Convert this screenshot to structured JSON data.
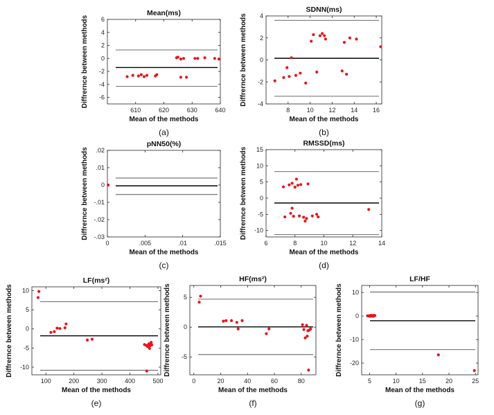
{
  "ylabel_text": "Diffrernce between methods",
  "xlabel_text": "Mean of the methods",
  "colors": {
    "points": "#e8151b",
    "mean_line": "#000000",
    "limit_line": "#555555",
    "axes": "#222222"
  },
  "chart_data": [
    {
      "type": "scatter",
      "title": "Mean(ms)",
      "panel_label": "(a)",
      "xlim": [
        600,
        640
      ],
      "ylim": [
        -7,
        6
      ],
      "xticks": [
        610,
        620,
        630,
        640
      ],
      "yticks": [
        -6,
        -4,
        -2,
        0,
        2,
        4,
        6
      ],
      "x": [
        607,
        609,
        611,
        612,
        613,
        614,
        617,
        617.5,
        624.5,
        625,
        626,
        627,
        628,
        631,
        632,
        634.5,
        638,
        639.5,
        626
      ],
      "y": [
        -2.8,
        -2.6,
        -2.7,
        -2.5,
        -2.8,
        -2.6,
        -2.7,
        -2.5,
        0.1,
        0.2,
        -0.1,
        0.0,
        -2.9,
        0.0,
        0.0,
        0.1,
        0.0,
        -0.1,
        -2.9
      ],
      "lines": {
        "mean": -1.4,
        "upper": 1.3,
        "lower": -4.3
      }
    },
    {
      "type": "scatter",
      "title": "SDNN(ms)",
      "panel_label": "(b)",
      "xlim": [
        6,
        16.5
      ],
      "ylim": [
        -4,
        4
      ],
      "xticks": [
        8,
        10,
        12,
        14,
        16
      ],
      "yticks": [
        -4,
        -2,
        0,
        2,
        4
      ],
      "x": [
        6.8,
        7.6,
        7.9,
        8.1,
        8.3,
        8.7,
        9.1,
        9.6,
        10.1,
        10.3,
        10.6,
        10.9,
        11.1,
        11.3,
        11.4,
        12.9,
        13.1,
        13.3,
        13.6,
        14.2,
        16.4
      ],
      "y": [
        -1.9,
        -1.6,
        -0.7,
        -1.5,
        0.2,
        -1.4,
        -1.2,
        -2.1,
        1.7,
        2.3,
        -1.1,
        2.2,
        2.4,
        2.2,
        1.9,
        -1.0,
        1.6,
        -1.3,
        2.0,
        1.9,
        1.2
      ],
      "lines": {
        "mean": 0.15,
        "upper": 3.6,
        "lower": -3.3
      }
    },
    {
      "type": "scatter",
      "title": "pNN50(%)",
      "panel_label": "(c)",
      "xlim": [
        0,
        0.015
      ],
      "ylim": [
        -0.03,
        0.02
      ],
      "xticks": [
        0,
        0.005,
        0.01,
        0.015
      ],
      "yticks": [
        -0.03,
        -0.02,
        -0.01,
        0,
        0.01,
        0.02
      ],
      "x": [
        0.0001
      ],
      "y": [
        0.0
      ],
      "lines": {
        "mean": -0.0005,
        "upper": 0.004,
        "lower": -0.0055
      }
    },
    {
      "type": "scatter",
      "title": "RMSSD(ms)",
      "panel_label": "(d)",
      "xlim": [
        6,
        14
      ],
      "ylim": [
        -12,
        15
      ],
      "xticks": [
        6,
        8,
        10,
        12,
        14
      ],
      "yticks": [
        -10,
        -5,
        0,
        5,
        10,
        15
      ],
      "x": [
        7.2,
        7.3,
        7.6,
        7.7,
        7.8,
        7.8,
        7.9,
        8.0,
        8.1,
        8.2,
        8.3,
        8.4,
        8.6,
        8.7,
        8.8,
        8.9,
        9.2,
        9.5,
        9.6,
        13.1
      ],
      "y": [
        3.5,
        -5.8,
        4.1,
        -4.7,
        -3.1,
        4.6,
        -5.6,
        3.4,
        5.9,
        4.0,
        -5.5,
        4.2,
        -5.9,
        -7.1,
        -6.3,
        4.4,
        -5.5,
        -5.0,
        -5.8,
        -3.5
      ],
      "lines": {
        "mean": -1.5,
        "upper": 8.2,
        "lower": -11.3
      }
    },
    {
      "type": "scatter",
      "title": "LF(ms²)",
      "panel_label": "(e)",
      "xlim": [
        50,
        510
      ],
      "ylim": [
        -12,
        11
      ],
      "xticks": [
        100,
        200,
        300,
        400,
        500
      ],
      "yticks": [
        -10,
        -5,
        0,
        5,
        10
      ],
      "x": [
        72,
        75,
        118,
        130,
        140,
        150,
        168,
        172,
        248,
        265,
        452,
        458,
        460,
        463,
        465,
        468,
        470,
        472,
        475,
        476,
        478
      ],
      "y": [
        8.2,
        9.8,
        -0.9,
        -0.7,
        0.2,
        0.1,
        0.3,
        1.3,
        -2.9,
        -2.7,
        -4.1,
        -4.3,
        -11.0,
        -4.6,
        -4.2,
        -3.9,
        -5.1,
        -4.4,
        -4.0,
        -3.5,
        -4.2
      ],
      "lines": {
        "mean": -1.8,
        "upper": 7.1,
        "lower": -10.8
      }
    },
    {
      "type": "scatter",
      "title": "HF(ms²)",
      "panel_label": "(f)",
      "xlim": [
        -3,
        91
      ],
      "ylim": [
        -8,
        7
      ],
      "xticks": [
        0,
        20,
        40,
        60,
        80
      ],
      "yticks": [
        -5,
        0,
        5
      ],
      "x": [
        4,
        5,
        22,
        24,
        28,
        32,
        33,
        36,
        54,
        56,
        81,
        82,
        83,
        84,
        84.5,
        85,
        86,
        87,
        85.5
      ],
      "y": [
        4.2,
        5.2,
        1.0,
        1.1,
        1.1,
        0.8,
        -0.3,
        1.1,
        -1.1,
        -0.3,
        0.4,
        -0.4,
        -1.8,
        0.3,
        -1.5,
        -0.6,
        -0.5,
        -0.3,
        -7.2
      ],
      "lines": {
        "mean": 0.05,
        "upper": 4.7,
        "lower": -4.6
      }
    },
    {
      "type": "scatter",
      "title": "LF/HF",
      "panel_label": "(g)",
      "xlim": [
        3.5,
        25.5
      ],
      "ylim": [
        -25,
        13
      ],
      "xticks": [
        5,
        10,
        15,
        20,
        25
      ],
      "yticks": [
        -20,
        -10,
        0,
        10
      ],
      "x": [
        4.6,
        4.8,
        5.0,
        5.1,
        5.2,
        5.3,
        5.4,
        5.5,
        5.6,
        5.7,
        5.8,
        5.9,
        6.0,
        18.0,
        24.8
      ],
      "y": [
        0.1,
        0.0,
        0.2,
        -0.1,
        0.0,
        0.3,
        0.1,
        0.0,
        0.2,
        -0.1,
        0.3,
        0.1,
        0.2,
        -16.5,
        -23.2
      ],
      "lines": {
        "mean": -2.0,
        "upper": 10.2,
        "lower": -14.3
      }
    }
  ]
}
